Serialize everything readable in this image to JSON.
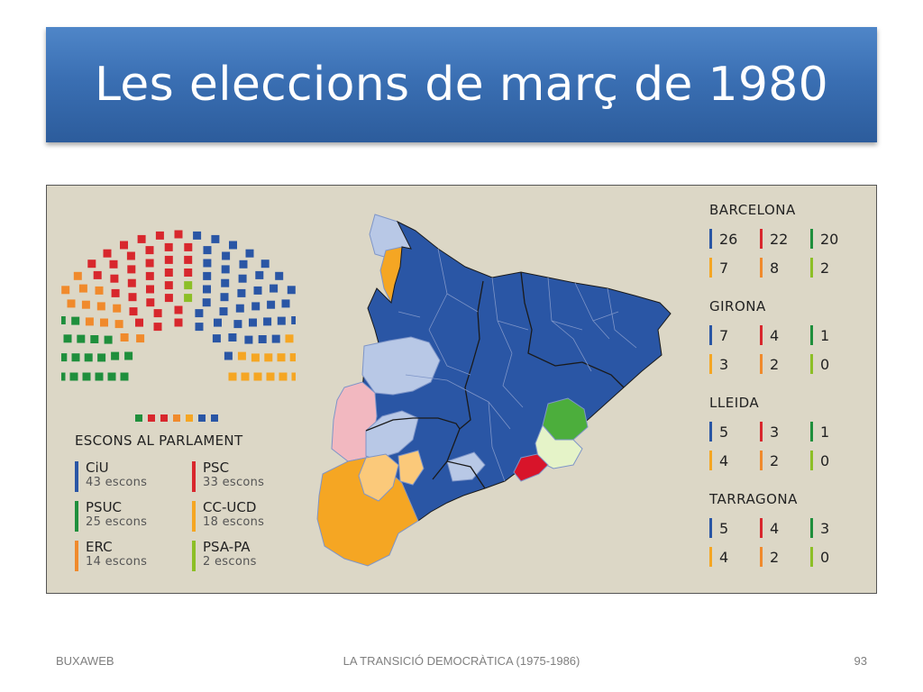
{
  "slide": {
    "title": "Les eleccions de març de 1980",
    "footer_left": "BUXAWEB",
    "footer_center": "LA TRANSICIÓ DEMOCRÀTICA (1975-1986)",
    "page_number": "93"
  },
  "parliament": {
    "legend_title": "ESCONS AL PARLAMENT",
    "parties": [
      {
        "name": "CiU",
        "seats_label": "43 escons",
        "seats": 43,
        "color": "#2a56a5"
      },
      {
        "name": "PSC",
        "seats_label": "33 escons",
        "seats": 33,
        "color": "#d8272d"
      },
      {
        "name": "PSUC",
        "seats_label": "25 escons",
        "seats": 25,
        "color": "#1f8f3c"
      },
      {
        "name": "CC-UCD",
        "seats_label": "18 escons",
        "seats": 18,
        "color": "#f5a623"
      },
      {
        "name": "ERC",
        "seats_label": "14 escons",
        "seats": 14,
        "color": "#f08a2c"
      },
      {
        "name": "PSA-PA",
        "seats_label": "2 escons",
        "seats": 2,
        "color": "#8cbf26"
      }
    ],
    "other_seat_color": "#9a9a9a"
  },
  "provinces": [
    {
      "name": "BARCELONA",
      "results": [
        {
          "value": "26",
          "color": "#2a56a5"
        },
        {
          "value": "22",
          "color": "#d8272d"
        },
        {
          "value": "20",
          "color": "#1f8f3c"
        },
        {
          "value": "7",
          "color": "#f5a623"
        },
        {
          "value": "8",
          "color": "#f08a2c"
        },
        {
          "value": "2",
          "color": "#8cbf26"
        }
      ]
    },
    {
      "name": "GIRONA",
      "results": [
        {
          "value": "7",
          "color": "#2a56a5"
        },
        {
          "value": "4",
          "color": "#d8272d"
        },
        {
          "value": "1",
          "color": "#1f8f3c"
        },
        {
          "value": "3",
          "color": "#f5a623"
        },
        {
          "value": "2",
          "color": "#f08a2c"
        },
        {
          "value": "0",
          "color": "#8cbf26"
        }
      ]
    },
    {
      "name": "LLEIDA",
      "results": [
        {
          "value": "5",
          "color": "#2a56a5"
        },
        {
          "value": "3",
          "color": "#d8272d"
        },
        {
          "value": "1",
          "color": "#1f8f3c"
        },
        {
          "value": "4",
          "color": "#f5a623"
        },
        {
          "value": "2",
          "color": "#f08a2c"
        },
        {
          "value": "0",
          "color": "#8cbf26"
        }
      ]
    },
    {
      "name": "TARRAGONA",
      "results": [
        {
          "value": "5",
          "color": "#2a56a5"
        },
        {
          "value": "4",
          "color": "#d8272d"
        },
        {
          "value": "3",
          "color": "#1f8f3c"
        },
        {
          "value": "4",
          "color": "#f5a623"
        },
        {
          "value": "2",
          "color": "#f08a2c"
        },
        {
          "value": "0",
          "color": "#8cbf26"
        }
      ]
    }
  ],
  "map_colors": {
    "ciu": "#2a56a5",
    "ciu_light": "#b8c8e6",
    "psc": "#d8142a",
    "psuc": "#4cae3c",
    "psuc_light": "#e5f3c8",
    "ccucd": "#f5a623",
    "ccucd_light": "#fbc97a",
    "erc_light": "#f2b8c0",
    "border": "#1a1a1a",
    "sub_border": "#7e95c8"
  }
}
